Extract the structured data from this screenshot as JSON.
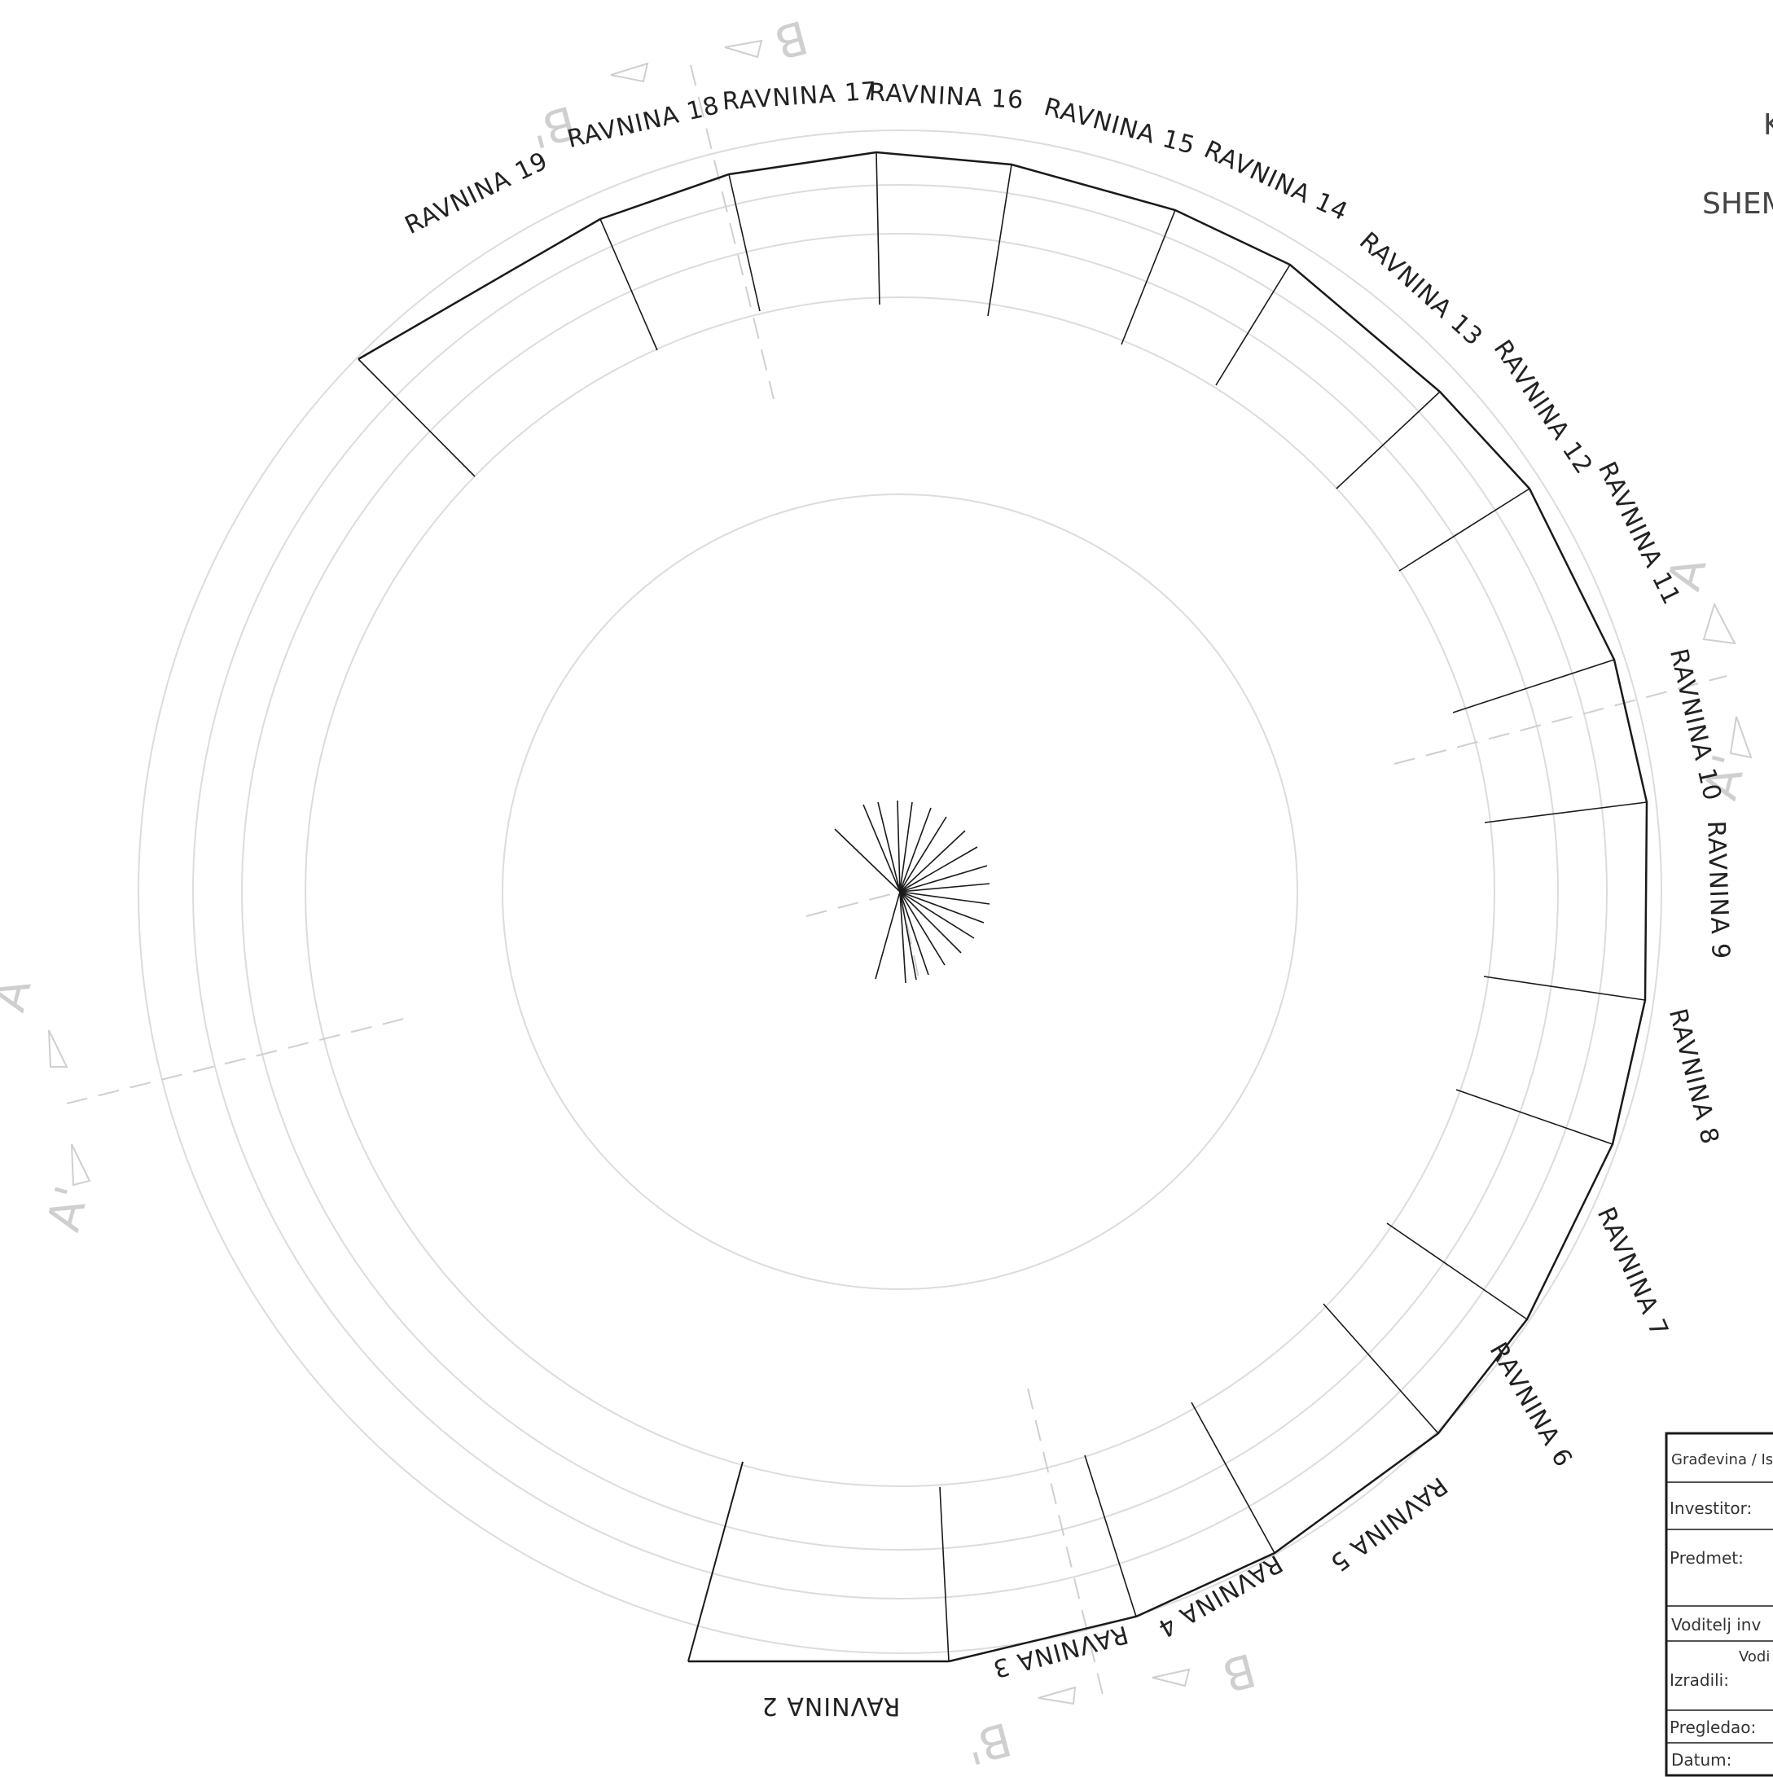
{
  "plane_labels": [
    "RAVNINA 2",
    "RAVNINA 3",
    "RAVNINA 4",
    "RAVNINA 5",
    "RAVNINA 6",
    "RAVNINA 7",
    "RAVNINA 8",
    "RAVNINA 9",
    "RAVNINA 10",
    "RAVNINA 11",
    "RAVNINA 12",
    "RAVNINA 13",
    "RAVNINA 14",
    "RAVNINA 15",
    "RAVNINA 16",
    "RAVNINA 17",
    "RAVNINA 18",
    "RAVNINA 19"
  ],
  "section_marks": {
    "a": "A",
    "a_prime": "A'",
    "b": "B",
    "b_prime": "B'"
  },
  "title_fragments": {
    "top": "K",
    "second": "SHEM"
  },
  "title_block": {
    "header": "Građevina / Ispravljanje dogradnje",
    "investitor": "Investitor:",
    "predmet": "Predmet:",
    "voditelj": "Voditelj inv",
    "izradili": "Izradili:",
    "izradili_value": "Vodi",
    "pregledao": "Pregledao:",
    "datum": "Datum:"
  },
  "colors": {
    "outline": "#1a1a1a",
    "guide": "#dcdcdc",
    "section": "#cfcfcf"
  }
}
